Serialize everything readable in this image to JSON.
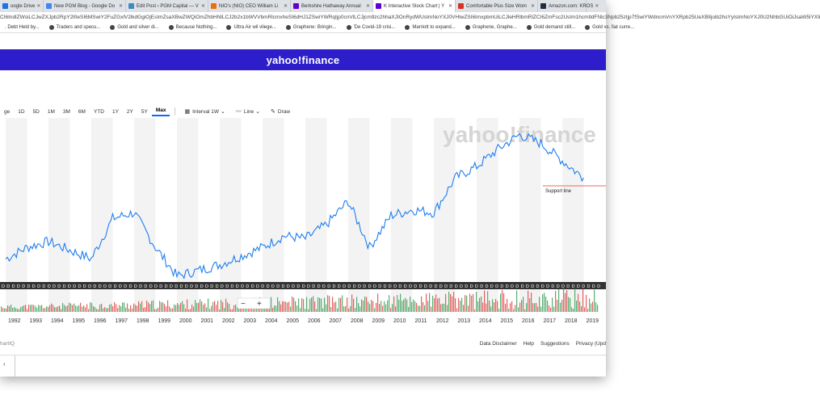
{
  "tabs": [
    {
      "label": "oogle Drive",
      "color": "#1a73e8"
    },
    {
      "label": "New PGM Blog - Google Do",
      "color": "#4285f4"
    },
    {
      "label": "Edit Post ‹ PGM Capital — V",
      "color": "#3c8dbc"
    },
    {
      "label": "NIO's (NIO) CEO William Li",
      "color": "#e8710a"
    },
    {
      "label": "Berkshire Hathaway Annual",
      "color": "#6001d2"
    },
    {
      "label": "K Interactive Stock Chart | Y",
      "color": "#6001d2",
      "active": true
    },
    {
      "label": "Comfortable Plus Size Wom",
      "color": "#d93025"
    },
    {
      "label": "Amazon.com: KROS",
      "color": "#232f3e"
    }
  ],
  "url": "CI6IndlZWsiLCJwZXJpb2RpY2l0eSI6MSwiY2FuZGxlV2lkdGgiOjEsImZsaXBwZWQiOmZhbHNlLCJ2b2x1bWVVbmRlcmxheSI6dHJ1ZSwiYWRqIjp0cnVlLCJjcm9zc2hhaXJIOnRydWUsImNoYXJ0VHlwZSI6ImxpbmUiLCJleHRlbmRlZCI6ZmFsc2UsIm1hcmtldFNlc3Npb25zIjp7fSwiYWdncmVnYXRpb25UeXBlIjoib2hsYyIsImNoYXJ0U2NhbGUiOiJsaW5lYXIi",
  "bookmarks": [
    ". Debt Held by...",
    "Traders and specu...",
    "Gold and silver di...",
    "Because Nothing...",
    "Ultra Air wil vliege...",
    "Graphene: Bringin...",
    "'De Covid-19 crisi...",
    "Marriott to expand...",
    "Graphene, Graphe...",
    "Gold demand still...",
    "Gold vs. fiat curre..."
  ],
  "header": {
    "logo": "yahoo!finance"
  },
  "ranges": [
    "ge",
    "1D",
    "5D",
    "1M",
    "3M",
    "6M",
    "YTD",
    "1Y",
    "2Y",
    "5Y",
    "Max"
  ],
  "active_range": "Max",
  "tools": {
    "interval": "Interval",
    "interval_value": "1W",
    "chart_type": "Line",
    "draw": "Draw"
  },
  "annotation": "Support line",
  "zoom": {
    "minus": "−",
    "plus": "+"
  },
  "watermark": "yahoo!finance",
  "dividend_marker": "D",
  "footer": {
    "chartiq": "hartIQ",
    "links": [
      "Data Disclaimer",
      "Help",
      "Suggestions",
      "Privacy (Upd"
    ]
  },
  "chart_data": {
    "type": "line",
    "x": [
      "1992",
      "1993",
      "1994",
      "1995",
      "1996",
      "1997",
      "1998",
      "1999",
      "2000",
      "2001",
      "2002",
      "2003",
      "2004",
      "2005",
      "2006",
      "2007",
      "2008",
      "2009",
      "2010",
      "2011",
      "2012",
      "2013",
      "2014",
      "2015",
      "2016",
      "2017",
      "2018",
      "2019"
    ],
    "series": [
      {
        "values": [
          280,
          300,
          310,
          295,
          280,
          350,
          360,
          300,
          250,
          260,
          270,
          285,
          300,
          320,
          315,
          340,
          380,
          300,
          355,
          365,
          360,
          420,
          440,
          470,
          495,
          480,
          450,
          420
        ]
      }
    ],
    "colors": {
      "line": "#1e7ef0",
      "accent": "#2e1dca",
      "support_line": "#e53935",
      "volume_up": "#2e9b4e",
      "volume_down": "#e23a3a"
    }
  }
}
